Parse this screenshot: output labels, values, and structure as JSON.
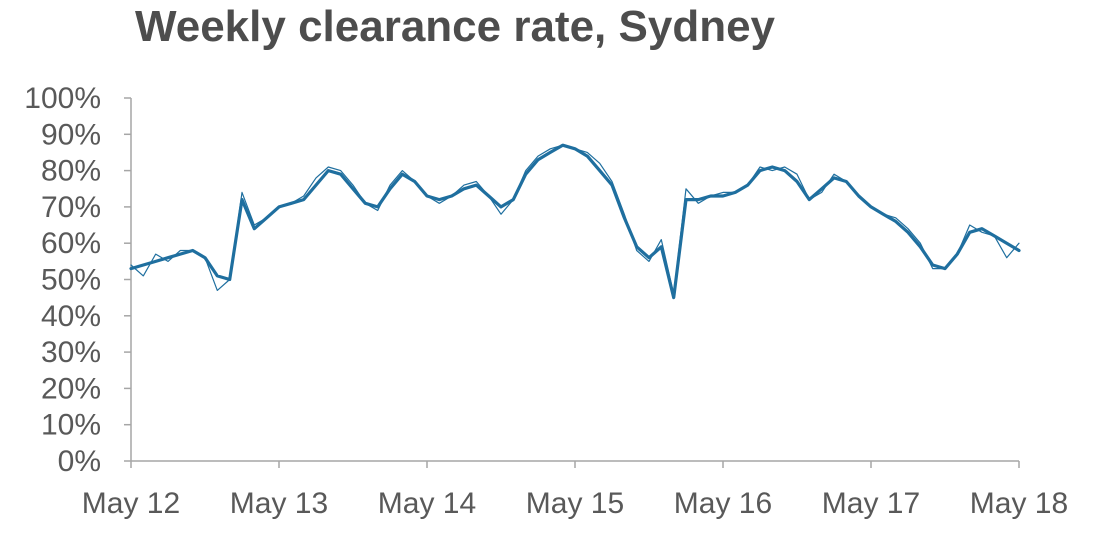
{
  "chart_data": {
    "type": "line",
    "title": "Weekly clearance rate, Sydney",
    "xlabel": "",
    "ylabel": "",
    "ylim": [
      0,
      100
    ],
    "grid": false,
    "x_tick_labels": [
      "May 12",
      "May 13",
      "May 14",
      "May 15",
      "May 16",
      "May 17",
      "May 18"
    ],
    "y_tick_labels": [
      "0%",
      "10%",
      "20%",
      "30%",
      "40%",
      "50%",
      "60%",
      "70%",
      "80%",
      "90%",
      "100%"
    ],
    "x_start": "2012-05",
    "x_end": "2018-05",
    "series": [
      {
        "color": "#1f6f9f",
        "style": "thin",
        "points": [
          [
            "2012-05",
            54
          ],
          [
            "2012-06",
            51
          ],
          [
            "2012-07",
            57
          ],
          [
            "2012-08",
            55
          ],
          [
            "2012-09",
            58
          ],
          [
            "2012-10",
            58
          ],
          [
            "2012-11",
            56
          ],
          [
            "2012-12",
            47
          ],
          [
            "2013-01",
            50
          ],
          [
            "2013-02",
            74
          ],
          [
            "2013-03",
            65
          ],
          [
            "2013-04",
            67
          ],
          [
            "2013-05",
            70
          ],
          [
            "2013-06",
            71
          ],
          [
            "2013-07",
            73
          ],
          [
            "2013-08",
            78
          ],
          [
            "2013-09",
            81
          ],
          [
            "2013-10",
            80
          ],
          [
            "2013-11",
            76
          ],
          [
            "2013-12",
            71
          ],
          [
            "2014-01",
            69
          ],
          [
            "2014-02",
            76
          ],
          [
            "2014-03",
            80
          ],
          [
            "2014-04",
            77
          ],
          [
            "2014-05",
            73
          ],
          [
            "2014-06",
            71
          ],
          [
            "2014-07",
            73
          ],
          [
            "2014-08",
            76
          ],
          [
            "2014-09",
            77
          ],
          [
            "2014-10",
            73
          ],
          [
            "2014-11",
            68
          ],
          [
            "2014-12",
            72
          ],
          [
            "2015-01",
            80
          ],
          [
            "2015-02",
            84
          ],
          [
            "2015-03",
            86
          ],
          [
            "2015-04",
            87
          ],
          [
            "2015-05",
            86
          ],
          [
            "2015-06",
            85
          ],
          [
            "2015-07",
            82
          ],
          [
            "2015-08",
            77
          ],
          [
            "2015-09",
            68
          ],
          [
            "2015-10",
            58
          ],
          [
            "2015-11",
            55
          ],
          [
            "2015-12",
            61
          ],
          [
            "2016-01",
            46
          ],
          [
            "2016-02",
            75
          ],
          [
            "2016-03",
            71
          ],
          [
            "2016-04",
            73
          ],
          [
            "2016-05",
            74
          ],
          [
            "2016-06",
            74
          ],
          [
            "2016-07",
            76
          ],
          [
            "2016-08",
            81
          ],
          [
            "2016-09",
            80
          ],
          [
            "2016-10",
            81
          ],
          [
            "2016-11",
            79
          ],
          [
            "2016-12",
            72
          ],
          [
            "2017-01",
            74
          ],
          [
            "2017-02",
            79
          ],
          [
            "2017-03",
            77
          ],
          [
            "2017-04",
            73
          ],
          [
            "2017-05",
            70
          ],
          [
            "2017-06",
            68
          ],
          [
            "2017-07",
            67
          ],
          [
            "2017-08",
            64
          ],
          [
            "2017-09",
            60
          ],
          [
            "2017-10",
            53
          ],
          [
            "2017-11",
            53
          ],
          [
            "2017-12",
            57
          ],
          [
            "2018-01",
            65
          ],
          [
            "2018-02",
            63
          ],
          [
            "2018-03",
            62
          ],
          [
            "2018-04",
            56
          ],
          [
            "2018-05",
            60
          ]
        ]
      },
      {
        "color": "#1f6f9f",
        "style": "thick",
        "points": [
          [
            "2012-05",
            53
          ],
          [
            "2012-06",
            54
          ],
          [
            "2012-07",
            55
          ],
          [
            "2012-08",
            56
          ],
          [
            "2012-09",
            57
          ],
          [
            "2012-10",
            58
          ],
          [
            "2012-11",
            56
          ],
          [
            "2012-12",
            51
          ],
          [
            "2013-01",
            50
          ],
          [
            "2013-02",
            72
          ],
          [
            "2013-03",
            64
          ],
          [
            "2013-04",
            67
          ],
          [
            "2013-05",
            70
          ],
          [
            "2013-06",
            71
          ],
          [
            "2013-07",
            72
          ],
          [
            "2013-08",
            76
          ],
          [
            "2013-09",
            80
          ],
          [
            "2013-10",
            79
          ],
          [
            "2013-11",
            75
          ],
          [
            "2013-12",
            71
          ],
          [
            "2014-01",
            70
          ],
          [
            "2014-02",
            75
          ],
          [
            "2014-03",
            79
          ],
          [
            "2014-04",
            77
          ],
          [
            "2014-05",
            73
          ],
          [
            "2014-06",
            72
          ],
          [
            "2014-07",
            73
          ],
          [
            "2014-08",
            75
          ],
          [
            "2014-09",
            76
          ],
          [
            "2014-10",
            73
          ],
          [
            "2014-11",
            70
          ],
          [
            "2014-12",
            72
          ],
          [
            "2015-01",
            79
          ],
          [
            "2015-02",
            83
          ],
          [
            "2015-03",
            85
          ],
          [
            "2015-04",
            87
          ],
          [
            "2015-05",
            86
          ],
          [
            "2015-06",
            84
          ],
          [
            "2015-07",
            80
          ],
          [
            "2015-08",
            76
          ],
          [
            "2015-09",
            67
          ],
          [
            "2015-10",
            59
          ],
          [
            "2015-11",
            56
          ],
          [
            "2015-12",
            59
          ],
          [
            "2016-01",
            45
          ],
          [
            "2016-02",
            72
          ],
          [
            "2016-03",
            72
          ],
          [
            "2016-04",
            73
          ],
          [
            "2016-05",
            73
          ],
          [
            "2016-06",
            74
          ],
          [
            "2016-07",
            76
          ],
          [
            "2016-08",
            80
          ],
          [
            "2016-09",
            81
          ],
          [
            "2016-10",
            80
          ],
          [
            "2016-11",
            77
          ],
          [
            "2016-12",
            72
          ],
          [
            "2017-01",
            75
          ],
          [
            "2017-02",
            78
          ],
          [
            "2017-03",
            77
          ],
          [
            "2017-04",
            73
          ],
          [
            "2017-05",
            70
          ],
          [
            "2017-06",
            68
          ],
          [
            "2017-07",
            66
          ],
          [
            "2017-08",
            63
          ],
          [
            "2017-09",
            59
          ],
          [
            "2017-10",
            54
          ],
          [
            "2017-11",
            53
          ],
          [
            "2017-12",
            57
          ],
          [
            "2018-01",
            63
          ],
          [
            "2018-02",
            64
          ],
          [
            "2018-03",
            62
          ],
          [
            "2018-04",
            60
          ],
          [
            "2018-05",
            58
          ]
        ]
      }
    ],
    "axis_color": "#a6a6a6",
    "label_color": "#595959",
    "title_color": "#4d4d4d"
  }
}
